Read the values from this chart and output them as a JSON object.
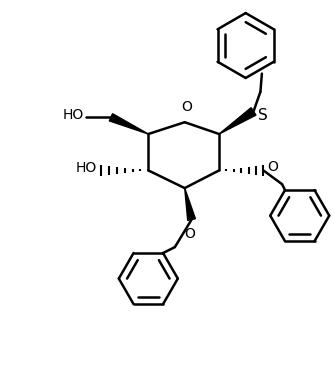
{
  "bg_color": "#ffffff",
  "line_color": "#000000",
  "line_width": 1.8,
  "figsize": [
    3.34,
    3.88
  ],
  "dpi": 100,
  "xlim": [
    0,
    334
  ],
  "ylim": [
    0,
    388
  ]
}
